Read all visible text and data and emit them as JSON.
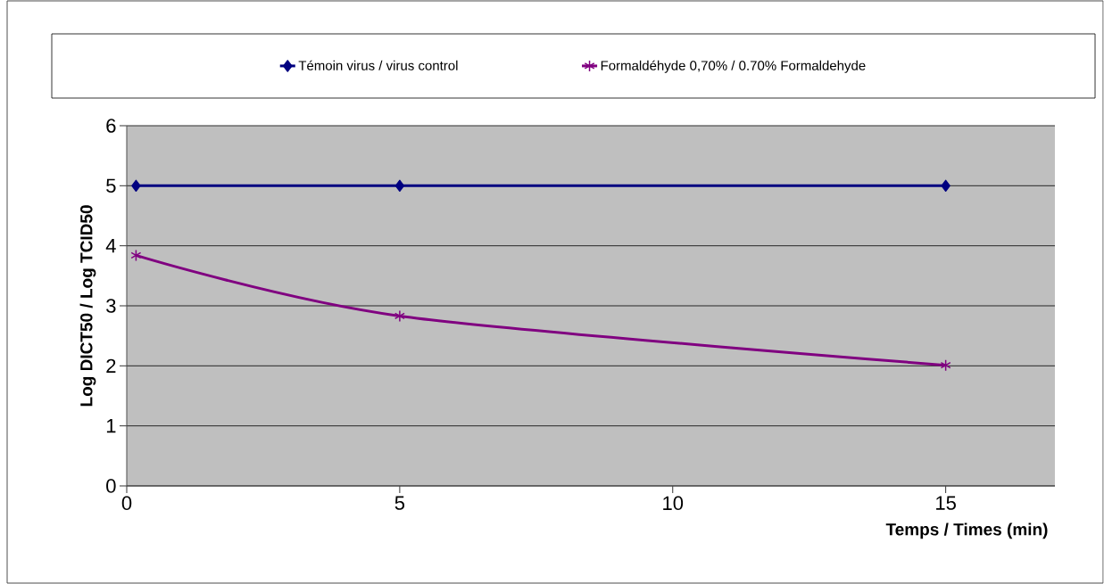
{
  "chart_data": {
    "type": "line",
    "xlabel": "Temps / Times (min)",
    "ylabel": "Log DICT50 / Log TCID50",
    "xlim": [
      0,
      17
    ],
    "xticks": [
      0,
      5,
      10,
      15
    ],
    "ylim": [
      0,
      6
    ],
    "yticks": [
      0,
      1,
      2,
      3,
      4,
      5,
      6
    ],
    "grid": "y",
    "legend": "top",
    "line_style": "solid",
    "series": [
      {
        "name": "Témoin virus / virus control",
        "color": "#000080",
        "marker": "diamond",
        "x": [
          0.17,
          5,
          15
        ],
        "values": [
          5,
          5,
          5
        ]
      },
      {
        "name": "Formaldéhyde 0,70% /  0.70% Formaldehyde",
        "color": "#800080",
        "marker": "cross",
        "x": [
          0.17,
          5,
          15
        ],
        "values": [
          3.84,
          2.83,
          2.01
        ]
      }
    ]
  }
}
